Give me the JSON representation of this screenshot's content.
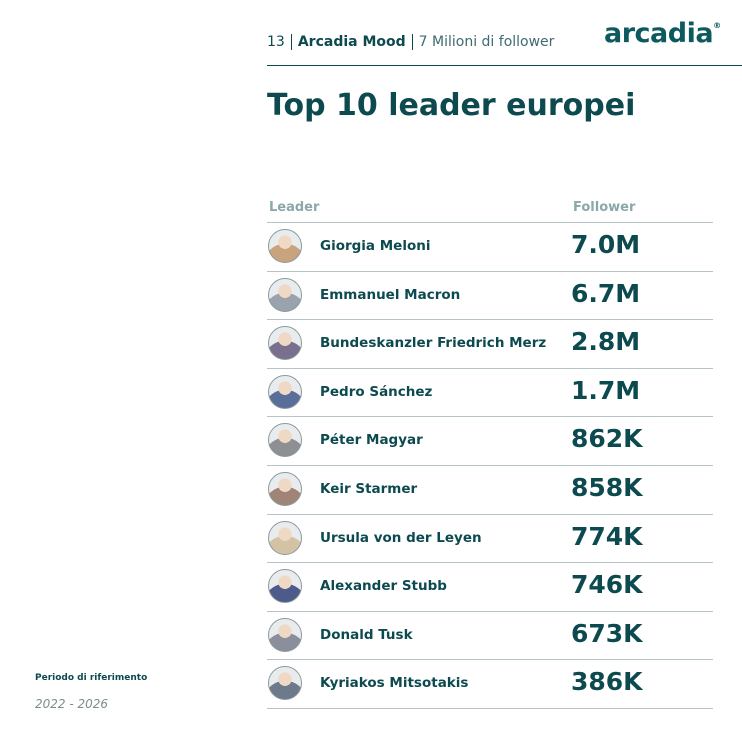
{
  "header": {
    "page": "13",
    "brand": "Arcadia Mood",
    "subtitle": "7 Milioni di follower",
    "logo": {
      "text": "arcadia",
      "mark": "®"
    }
  },
  "title": "Top 10 leader europei",
  "table": {
    "columns": [
      "Leader",
      "Follower"
    ],
    "rows": [
      [
        "Giorgia Meloni",
        "7.0M"
      ],
      [
        "Emmanuel Macron",
        "6.7M"
      ],
      [
        "Bundeskanzler Friedrich Merz",
        "2.8M"
      ],
      [
        "Pedro Sánchez",
        "1.7M"
      ],
      [
        "Péter Magyar",
        "862K"
      ],
      [
        "Keir Starmer",
        "858K"
      ],
      [
        "Ursula von der Leyen",
        "774K"
      ],
      [
        "Alexander Stubb",
        "746K"
      ],
      [
        "Donald Tusk",
        "673K"
      ],
      [
        "Kyriakos Mitsotakis",
        "386K"
      ]
    ]
  },
  "footer": {
    "label": "Periodo di riferimento",
    "period": "2022 - 2026"
  }
}
